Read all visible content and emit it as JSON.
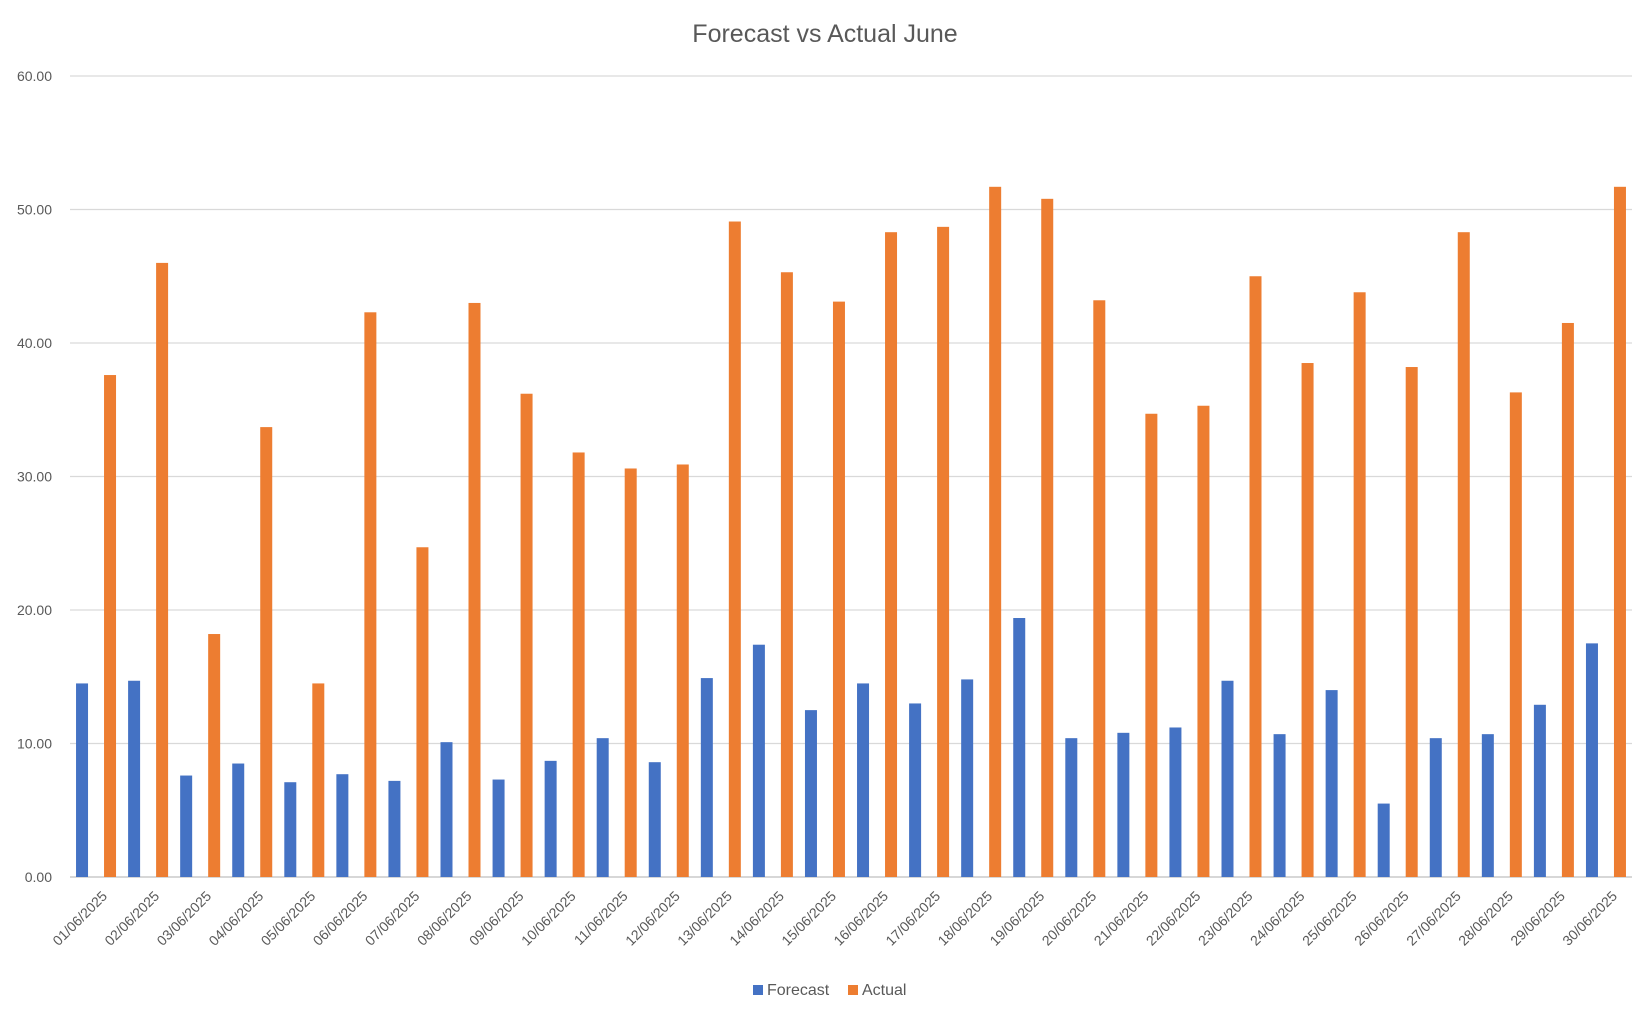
{
  "chart_data": {
    "type": "bar",
    "title": "Forecast vs Actual June",
    "xlabel": "",
    "ylabel": "",
    "ylim": [
      0,
      60
    ],
    "yticks": [
      "0.00",
      "10.00",
      "20.00",
      "30.00",
      "40.00",
      "50.00",
      "60.00"
    ],
    "grid": true,
    "legend_position": "bottom",
    "categories": [
      "01/06/2025",
      "02/06/2025",
      "03/06/2025",
      "04/06/2025",
      "05/06/2025",
      "06/06/2025",
      "07/06/2025",
      "08/06/2025",
      "09/06/2025",
      "10/06/2025",
      "11/06/2025",
      "12/06/2025",
      "13/06/2025",
      "14/06/2025",
      "15/06/2025",
      "16/06/2025",
      "17/06/2025",
      "18/06/2025",
      "19/06/2025",
      "20/06/2025",
      "21/06/2025",
      "22/06/2025",
      "23/06/2025",
      "24/06/2025",
      "25/06/2025",
      "26/06/2025",
      "27/06/2025",
      "28/06/2025",
      "29/06/2025",
      "30/06/2025"
    ],
    "series": [
      {
        "name": "Forecast",
        "color": "#4472C4",
        "values": [
          14.5,
          14.7,
          7.6,
          8.5,
          7.1,
          7.7,
          7.2,
          10.1,
          7.3,
          8.7,
          10.4,
          8.6,
          14.9,
          17.4,
          12.5,
          14.5,
          13.0,
          14.8,
          19.4,
          10.4,
          10.8,
          11.2,
          14.7,
          10.7,
          14.0,
          5.5,
          10.4,
          10.7,
          12.9,
          17.5
        ]
      },
      {
        "name": "Actual",
        "color": "#ED7D31",
        "values": [
          37.6,
          46.0,
          18.2,
          33.7,
          14.5,
          42.3,
          24.7,
          43.0,
          36.2,
          31.8,
          30.6,
          30.9,
          49.1,
          45.3,
          43.1,
          48.3,
          48.7,
          51.7,
          50.8,
          43.2,
          34.7,
          35.3,
          45.0,
          38.5,
          43.8,
          38.2,
          48.3,
          36.3,
          41.5,
          51.7
        ]
      }
    ]
  }
}
